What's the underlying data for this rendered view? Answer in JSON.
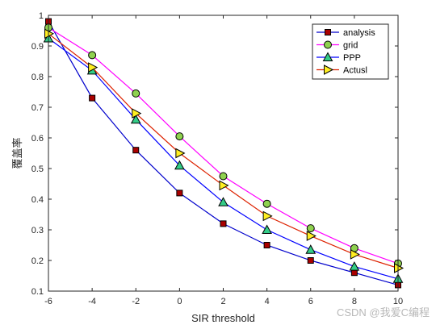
{
  "chart_data": {
    "type": "line",
    "xlabel": "SIR threshold",
    "ylabel": "覆盖率",
    "xlim": [
      -6,
      10
    ],
    "ylim": [
      0.1,
      1
    ],
    "x_ticks": [
      -6,
      -4,
      -2,
      0,
      2,
      4,
      6,
      8,
      10
    ],
    "y_ticks": [
      0.1,
      0.2,
      0.3,
      0.4,
      0.5,
      0.6,
      0.7,
      0.8,
      0.9,
      1
    ],
    "grid": false,
    "legend_position": "top-right",
    "series": [
      {
        "name": "analysis",
        "color": "#0000cc",
        "marker": "square",
        "marker_fill": "#aa0000",
        "x": [
          -6,
          -4,
          -2,
          0,
          2,
          4,
          6,
          8,
          10
        ],
        "y": [
          0.98,
          0.73,
          0.56,
          0.42,
          0.32,
          0.25,
          0.2,
          0.16,
          0.12
        ]
      },
      {
        "name": "grid",
        "color": "#ff00ff",
        "marker": "circle",
        "marker_fill": "#8fd14f",
        "x": [
          -6,
          -4,
          -2,
          0,
          2,
          4,
          6,
          8,
          10
        ],
        "y": [
          0.96,
          0.87,
          0.745,
          0.605,
          0.475,
          0.385,
          0.305,
          0.24,
          0.19
        ]
      },
      {
        "name": "PPP",
        "color": "#0000ff",
        "marker": "triangle-up",
        "marker_fill": "#33cc88",
        "x": [
          -6,
          -4,
          -2,
          0,
          2,
          4,
          6,
          8,
          10
        ],
        "y": [
          0.925,
          0.82,
          0.66,
          0.51,
          0.39,
          0.3,
          0.235,
          0.18,
          0.14
        ]
      },
      {
        "name": "Actusl",
        "color": "#dd2200",
        "marker": "triangle-right",
        "marker_fill": "#ffee22",
        "x": [
          -6,
          -4,
          -2,
          0,
          2,
          4,
          6,
          8,
          10
        ],
        "y": [
          0.94,
          0.83,
          0.68,
          0.55,
          0.445,
          0.345,
          0.28,
          0.22,
          0.175
        ]
      }
    ]
  },
  "watermark": "CSDN @我爱C编程"
}
